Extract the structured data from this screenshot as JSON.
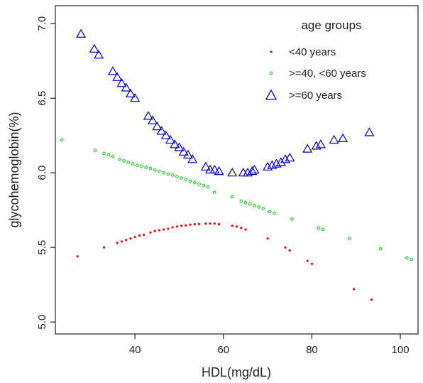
{
  "chart_data": {
    "type": "scatter",
    "title": "",
    "xlabel": "HDL(mg/dL)",
    "ylabel": "glycohemoglobin(%)",
    "xlim": [
      22,
      104
    ],
    "ylim": [
      4.92,
      7.12
    ],
    "x_ticks": [
      {
        "value": 40,
        "label": "40"
      },
      {
        "value": 60,
        "label": "60"
      },
      {
        "value": 80,
        "label": "80"
      },
      {
        "value": 100,
        "label": "100"
      }
    ],
    "y_ticks": [
      {
        "value": 5.0,
        "label": "5.0"
      },
      {
        "value": 5.5,
        "label": "5.5"
      },
      {
        "value": 6.0,
        "label": "6.0"
      },
      {
        "value": 6.5,
        "label": "6.5"
      },
      {
        "value": 7.0,
        "label": "7.0"
      }
    ],
    "grid": false,
    "legend": {
      "title": "age groups",
      "placement": "top-right",
      "entries": [
        {
          "label": "<40 years",
          "marker": "dot",
          "color": "#ff0000"
        },
        {
          "label": ">=40, <60 years",
          "marker": "circle",
          "color": "#00cc00"
        },
        {
          "label": ">=60  years",
          "marker": "triangle",
          "color": "#0000cc"
        }
      ]
    },
    "series": [
      {
        "name": "<40 years",
        "marker": "dot",
        "color": "#ff0000",
        "points": [
          [
            27.0,
            5.44
          ],
          [
            33.0,
            5.5
          ],
          [
            36.0,
            5.53
          ],
          [
            37.0,
            5.54
          ],
          [
            38.0,
            5.55
          ],
          [
            39.0,
            5.56
          ],
          [
            40.0,
            5.57
          ],
          [
            41.0,
            5.58
          ],
          [
            42.0,
            5.585
          ],
          [
            43.5,
            5.6
          ],
          [
            44.5,
            5.61
          ],
          [
            45.5,
            5.615
          ],
          [
            46.5,
            5.62
          ],
          [
            47.5,
            5.625
          ],
          [
            48.5,
            5.635
          ],
          [
            49.5,
            5.64
          ],
          [
            50.5,
            5.645
          ],
          [
            51.5,
            5.648
          ],
          [
            52.5,
            5.652
          ],
          [
            53.5,
            5.655
          ],
          [
            54.5,
            5.657
          ],
          [
            56.0,
            5.66
          ],
          [
            57.0,
            5.66
          ],
          [
            58.0,
            5.66
          ],
          [
            59.0,
            5.655
          ],
          [
            62.0,
            5.645
          ],
          [
            63.0,
            5.64
          ],
          [
            64.0,
            5.63
          ],
          [
            65.0,
            5.62
          ],
          [
            70.0,
            5.56
          ],
          [
            74.0,
            5.5
          ],
          [
            75.0,
            5.48
          ],
          [
            79.0,
            5.41
          ],
          [
            80.0,
            5.39
          ],
          [
            89.5,
            5.22
          ],
          [
            93.5,
            5.15
          ]
        ]
      },
      {
        "name": ">=40, <60 years",
        "marker": "circle",
        "color": "#00cc00",
        "points": [
          [
            23.5,
            6.22
          ],
          [
            31.0,
            6.15
          ],
          [
            33.0,
            6.13
          ],
          [
            34.0,
            6.12
          ],
          [
            35.0,
            6.11
          ],
          [
            36.5,
            6.09
          ],
          [
            37.5,
            6.08
          ],
          [
            38.5,
            6.07
          ],
          [
            39.5,
            6.06
          ],
          [
            40.5,
            6.05
          ],
          [
            41.5,
            6.045
          ],
          [
            42.5,
            6.035
          ],
          [
            43.5,
            6.03
          ],
          [
            44.5,
            6.02
          ],
          [
            45.5,
            6.01
          ],
          [
            46.5,
            6.0
          ],
          [
            47.5,
            5.99
          ],
          [
            48.5,
            5.985
          ],
          [
            49.5,
            5.975
          ],
          [
            50.5,
            5.965
          ],
          [
            51.5,
            5.955
          ],
          [
            52.5,
            5.945
          ],
          [
            53.5,
            5.935
          ],
          [
            54.5,
            5.925
          ],
          [
            55.5,
            5.915
          ],
          [
            56.5,
            5.905
          ],
          [
            58.0,
            5.87
          ],
          [
            62.0,
            5.84
          ],
          [
            64.0,
            5.81
          ],
          [
            65.0,
            5.8
          ],
          [
            66.0,
            5.79
          ],
          [
            67.0,
            5.78
          ],
          [
            68.0,
            5.77
          ],
          [
            69.0,
            5.76
          ],
          [
            70.5,
            5.74
          ],
          [
            71.5,
            5.73
          ],
          [
            75.5,
            5.69
          ],
          [
            81.5,
            5.63
          ],
          [
            82.5,
            5.62
          ],
          [
            88.5,
            5.56
          ],
          [
            95.5,
            5.49
          ],
          [
            101.5,
            5.43
          ],
          [
            102.5,
            5.42
          ]
        ]
      },
      {
        "name": ">=60  years",
        "marker": "triangle",
        "color": "#0000cc",
        "points": [
          [
            27.8,
            6.93
          ],
          [
            30.8,
            6.83
          ],
          [
            31.8,
            6.79
          ],
          [
            35.0,
            6.68
          ],
          [
            36.0,
            6.64
          ],
          [
            37.0,
            6.6
          ],
          [
            38.0,
            6.57
          ],
          [
            39.0,
            6.53
          ],
          [
            40.0,
            6.5
          ],
          [
            43.0,
            6.38
          ],
          [
            44.0,
            6.35
          ],
          [
            45.0,
            6.31
          ],
          [
            46.0,
            6.28
          ],
          [
            47.0,
            6.25
          ],
          [
            48.0,
            6.22
          ],
          [
            49.0,
            6.19
          ],
          [
            50.0,
            6.17
          ],
          [
            51.0,
            6.14
          ],
          [
            52.0,
            6.12
          ],
          [
            53.0,
            6.09
          ],
          [
            56.0,
            6.04
          ],
          [
            57.0,
            6.02
          ],
          [
            58.0,
            6.02
          ],
          [
            59.0,
            6.01
          ],
          [
            62.0,
            6.0
          ],
          [
            64.5,
            6.0
          ],
          [
            65.5,
            6.0
          ],
          [
            66.5,
            6.01
          ],
          [
            67.0,
            6.02
          ],
          [
            70.0,
            6.04
          ],
          [
            71.0,
            6.05
          ],
          [
            72.0,
            6.06
          ],
          [
            73.0,
            6.07
          ],
          [
            74.0,
            6.09
          ],
          [
            75.0,
            6.1
          ],
          [
            79.0,
            6.16
          ],
          [
            81.0,
            6.18
          ],
          [
            82.0,
            6.19
          ],
          [
            85.0,
            6.22
          ],
          [
            87.0,
            6.23
          ],
          [
            93.0,
            6.27
          ]
        ]
      }
    ]
  }
}
